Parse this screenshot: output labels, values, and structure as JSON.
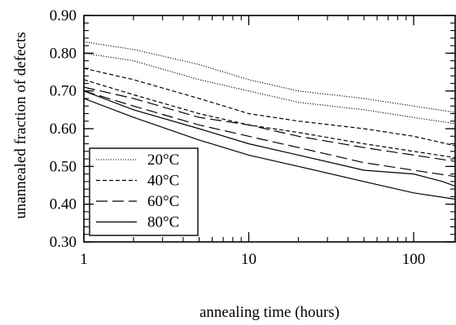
{
  "chart_data": {
    "type": "line",
    "title": "",
    "xlabel": "annealing time (hours)",
    "ylabel": "unannealed fraction of defects",
    "xscale": "log",
    "xlim": [
      1,
      300
    ],
    "ylim": [
      0.3,
      0.9
    ],
    "xticks": [
      {
        "value": 1,
        "label": "1"
      },
      {
        "value": 10,
        "label": "10"
      },
      {
        "value": 100,
        "label": "100"
      }
    ],
    "yticks": [
      {
        "value": 0.3,
        "label": "0.30"
      },
      {
        "value": 0.4,
        "label": "0.40"
      },
      {
        "value": 0.5,
        "label": "0.50"
      },
      {
        "value": 0.6,
        "label": "0.60"
      },
      {
        "value": 0.7,
        "label": "0.70"
      },
      {
        "value": 0.8,
        "label": "0.80"
      },
      {
        "value": 0.9,
        "label": "0.90"
      }
    ],
    "grid": false,
    "legend_position": "bottom-left",
    "legend": [
      {
        "label": "20°C",
        "style": "dotted"
      },
      {
        "label": "40°C",
        "style": "short-dash"
      },
      {
        "label": "60°C",
        "style": "long-dash"
      },
      {
        "label": "80°C",
        "style": "solid"
      }
    ],
    "series": [
      {
        "group": "20°C",
        "style": "dotted",
        "x": [
          1,
          2,
          5,
          10,
          20,
          50,
          100,
          200,
          300
        ],
        "y": [
          0.83,
          0.81,
          0.77,
          0.73,
          0.7,
          0.68,
          0.66,
          0.64,
          0.63
        ]
      },
      {
        "group": "20°C",
        "style": "dotted",
        "x": [
          1,
          2,
          5,
          10,
          20,
          50,
          100,
          200,
          300
        ],
        "y": [
          0.8,
          0.78,
          0.73,
          0.7,
          0.67,
          0.65,
          0.63,
          0.61,
          0.6
        ]
      },
      {
        "group": "40°C",
        "style": "short-dash",
        "x": [
          1,
          2,
          5,
          10,
          20,
          50,
          100,
          200,
          300
        ],
        "y": [
          0.76,
          0.73,
          0.68,
          0.64,
          0.62,
          0.6,
          0.58,
          0.55,
          0.53
        ]
      },
      {
        "group": "40°C",
        "style": "short-dash",
        "x": [
          1,
          2,
          5,
          10,
          20,
          50,
          100,
          200,
          300
        ],
        "y": [
          0.73,
          0.69,
          0.64,
          0.61,
          0.59,
          0.56,
          0.54,
          0.52,
          0.5
        ]
      },
      {
        "group": "60°C",
        "style": "long-dash",
        "x": [
          1,
          2,
          5,
          10,
          20,
          50,
          100,
          200,
          300
        ],
        "y": [
          0.71,
          0.68,
          0.63,
          0.61,
          0.58,
          0.55,
          0.53,
          0.51,
          0.49
        ]
      },
      {
        "group": "60°C",
        "style": "long-dash",
        "x": [
          1,
          2,
          5,
          10,
          20,
          50,
          100,
          200,
          300
        ],
        "y": [
          0.7,
          0.66,
          0.61,
          0.58,
          0.55,
          0.51,
          0.49,
          0.47,
          0.46
        ]
      },
      {
        "group": "80°C",
        "style": "solid",
        "x": [
          1,
          2,
          5,
          10,
          20,
          50,
          100,
          150,
          200,
          300
        ],
        "y": [
          0.7,
          0.65,
          0.6,
          0.56,
          0.53,
          0.49,
          0.48,
          0.46,
          0.44,
          0.42
        ]
      },
      {
        "group": "80°C",
        "style": "solid",
        "x": [
          1,
          2,
          5,
          10,
          20,
          50,
          100,
          200,
          300
        ],
        "y": [
          0.68,
          0.63,
          0.57,
          0.53,
          0.5,
          0.46,
          0.43,
          0.41,
          0.4
        ]
      }
    ]
  }
}
